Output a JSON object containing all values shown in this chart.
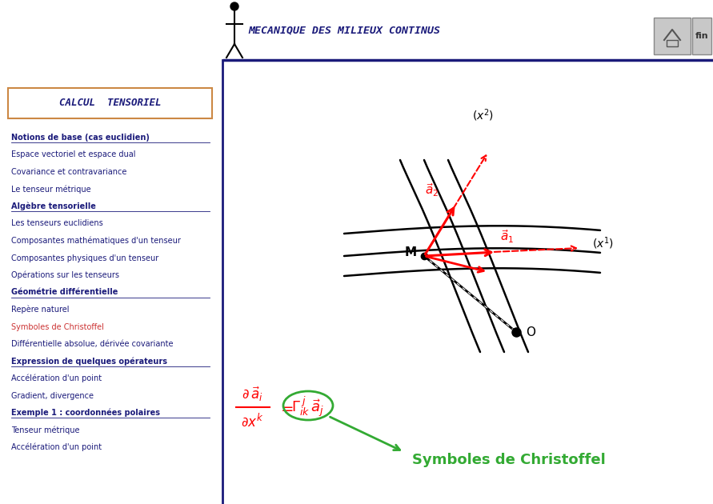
{
  "bg_color": "#ffffff",
  "title": "MECANIQUE DES MILIEUX CONTINUS",
  "title_color": "#1a1a7a",
  "title_fontsize": 10,
  "header_line_color": "#1a1a7a",
  "left_panel_border": "#cc8844",
  "left_divider_color": "#1a1a7a",
  "calcul_tensoriel": "CALCUL  TENSORIEL",
  "calcul_color": "#1a1a7a",
  "menu_items": [
    {
      "text": "Notions de base (cas euclidien)",
      "color": "#1a1a7a",
      "bold": true,
      "underline": true
    },
    {
      "text": "Espace vectoriel et espace dual",
      "color": "#1a1a7a",
      "bold": false,
      "underline": false
    },
    {
      "text": "Covariance et contravariance",
      "color": "#1a1a7a",
      "bold": false,
      "underline": false
    },
    {
      "text": "Le tenseur métrique",
      "color": "#1a1a7a",
      "bold": false,
      "underline": false
    },
    {
      "text": "Algèbre tensorielle",
      "color": "#1a1a7a",
      "bold": true,
      "underline": true
    },
    {
      "text": "Les tenseurs euclidiens",
      "color": "#1a1a7a",
      "bold": false,
      "underline": false
    },
    {
      "text": "Composantes mathématiques d'un tenseur",
      "color": "#1a1a7a",
      "bold": false,
      "underline": false
    },
    {
      "text": "Composantes physiques d'un tenseur",
      "color": "#1a1a7a",
      "bold": false,
      "underline": false
    },
    {
      "text": "Opérations sur les tenseurs",
      "color": "#1a1a7a",
      "bold": false,
      "underline": false
    },
    {
      "text": "Géométrie différentielle",
      "color": "#1a1a7a",
      "bold": true,
      "underline": true
    },
    {
      "text": "Repère naturel",
      "color": "#1a1a7a",
      "bold": false,
      "underline": false
    },
    {
      "text": "Symboles de Christoffel",
      "color": "#cc3333",
      "bold": false,
      "underline": false
    },
    {
      "text": "Différentielle absolue, dérivée covariante",
      "color": "#1a1a7a",
      "bold": false,
      "underline": false
    },
    {
      "text": "Expression de quelques opérateurs",
      "color": "#1a1a7a",
      "bold": true,
      "underline": true
    },
    {
      "text": "Accélération d'un point",
      "color": "#1a1a7a",
      "bold": false,
      "underline": false
    },
    {
      "text": "Gradient, divergence",
      "color": "#1a1a7a",
      "bold": false,
      "underline": false
    },
    {
      "text": "Exemple 1 : coordonnées polaires",
      "color": "#1a1a7a",
      "bold": true,
      "underline": true
    },
    {
      "text": "Tenseur métrique",
      "color": "#1a1a7a",
      "bold": false,
      "underline": false
    },
    {
      "text": "Accélération d'un point",
      "color": "#1a1a7a",
      "bold": false,
      "underline": false
    }
  ],
  "christoffel_label": "Symboles de Christoffel",
  "christoffel_color": "#33aa33"
}
